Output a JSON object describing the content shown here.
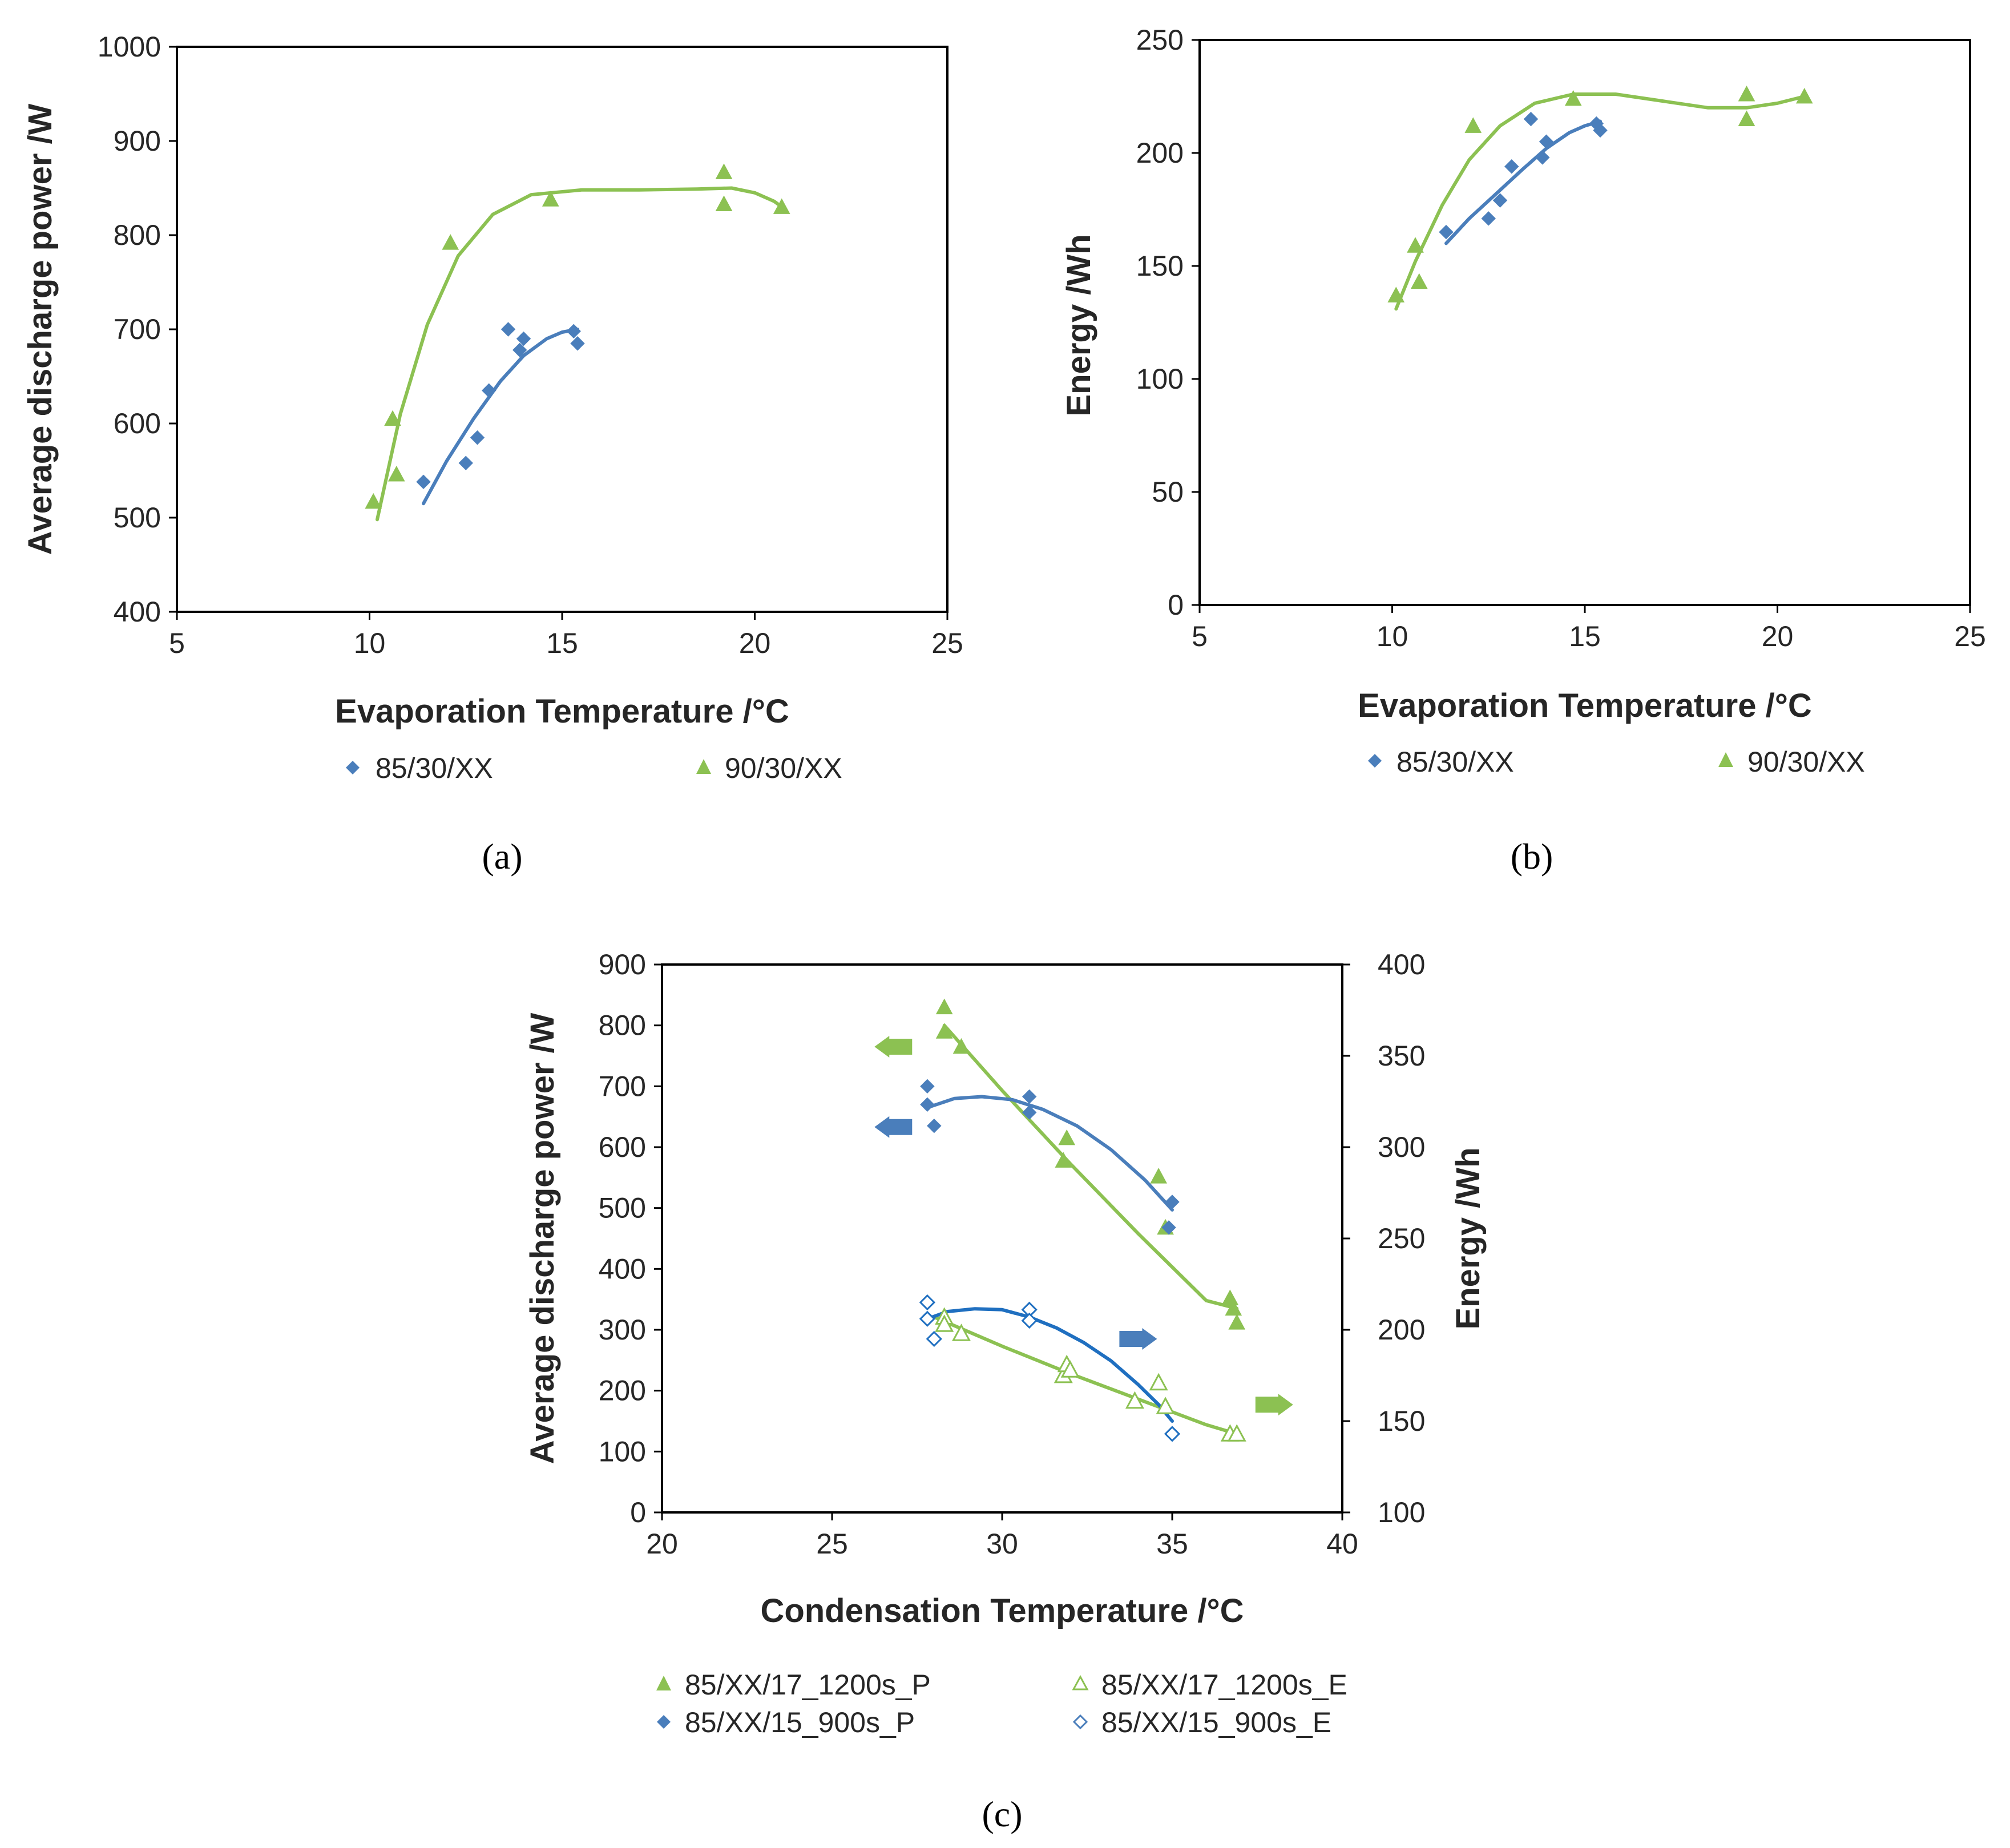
{
  "colors": {
    "blue": "#4a7ebb",
    "green": "#8cc152",
    "green_fill": "#92c94e",
    "blue_line": "#1f6fc0",
    "axis": "#000000"
  },
  "chart_data": [
    {
      "type": "scatter",
      "caption": "(a)",
      "xlabel": "Evaporation Temperature /°C",
      "ylabel": "Average discharge power /W",
      "xlim": [
        5,
        25
      ],
      "ylim": [
        400,
        1000
      ],
      "xticks": [
        5,
        10,
        15,
        20,
        25
      ],
      "yticks": [
        400,
        500,
        600,
        700,
        800,
        900,
        1000
      ],
      "series": [
        {
          "name": "85/30/XX",
          "marker": "diamond",
          "color": "#4a7ebb",
          "x": [
            11.4,
            12.5,
            12.8,
            13.1,
            13.6,
            13.9,
            14.0,
            15.3,
            15.4
          ],
          "y": [
            538,
            558,
            585,
            635,
            700,
            678,
            690,
            698,
            685
          ],
          "trend": [
            [
              11.4,
              515
            ],
            [
              12.0,
              560
            ],
            [
              12.7,
              605
            ],
            [
              13.4,
              645
            ],
            [
              14.0,
              672
            ],
            [
              14.6,
              690
            ],
            [
              15.0,
              697
            ],
            [
              15.4,
              700
            ]
          ]
        },
        {
          "name": "90/30/XX",
          "marker": "triangle",
          "color": "#8cc152",
          "x": [
            10.1,
            10.6,
            10.7,
            12.1,
            14.7,
            19.2,
            19.2,
            20.7
          ],
          "y": [
            517,
            605,
            546,
            792,
            838,
            867,
            833,
            830
          ],
          "trend": [
            [
              10.2,
              498
            ],
            [
              10.8,
              610
            ],
            [
              11.5,
              705
            ],
            [
              12.3,
              778
            ],
            [
              13.2,
              822
            ],
            [
              14.2,
              843
            ],
            [
              15.5,
              848
            ],
            [
              17.0,
              848
            ],
            [
              18.5,
              849
            ],
            [
              19.4,
              850
            ],
            [
              20.0,
              845
            ],
            [
              20.5,
              836
            ],
            [
              20.7,
              830
            ]
          ]
        }
      ]
    },
    {
      "type": "scatter",
      "caption": "(b)",
      "xlabel": "Evaporation Temperature /°C",
      "ylabel": "Energy /Wh",
      "xlim": [
        5,
        25
      ],
      "ylim": [
        0,
        250
      ],
      "xticks": [
        5,
        10,
        15,
        20,
        25
      ],
      "yticks": [
        0,
        50,
        100,
        150,
        200,
        250
      ],
      "series": [
        {
          "name": "85/30/XX",
          "marker": "diamond",
          "color": "#4a7ebb",
          "x": [
            11.4,
            12.5,
            12.8,
            13.1,
            13.6,
            13.9,
            14.0,
            15.3,
            15.4
          ],
          "y": [
            165,
            171,
            179,
            194,
            215,
            198,
            205,
            213,
            210
          ],
          "trend": [
            [
              11.4,
              160
            ],
            [
              12.0,
              171
            ],
            [
              12.7,
              182
            ],
            [
              13.4,
              193
            ],
            [
              14.0,
              202
            ],
            [
              14.6,
              209
            ],
            [
              15.0,
              212
            ],
            [
              15.4,
              214
            ]
          ]
        },
        {
          "name": "90/30/XX",
          "marker": "triangle",
          "color": "#8cc152",
          "x": [
            10.1,
            10.6,
            10.7,
            12.1,
            14.7,
            19.2,
            19.2,
            20.7
          ],
          "y": [
            137,
            159,
            143,
            212,
            224,
            226,
            215,
            225
          ],
          "trend": [
            [
              10.1,
              131
            ],
            [
              10.6,
              152
            ],
            [
              11.3,
              177
            ],
            [
              12.0,
              197
            ],
            [
              12.8,
              212
            ],
            [
              13.7,
              222
            ],
            [
              14.7,
              226
            ],
            [
              15.8,
              226
            ],
            [
              17.0,
              223
            ],
            [
              18.2,
              220
            ],
            [
              19.2,
              220
            ],
            [
              20.0,
              222
            ],
            [
              20.7,
              225
            ]
          ]
        }
      ]
    },
    {
      "type": "scatter",
      "caption": "(c)",
      "xlabel": "Condensation Temperature /°C",
      "ylabel": "Average discharge power /W",
      "y2label": "Energy /Wh",
      "xlim": [
        20,
        40
      ],
      "ylim": [
        0,
        900
      ],
      "y2lim": [
        100,
        400
      ],
      "xticks": [
        20,
        25,
        30,
        35,
        40
      ],
      "yticks": [
        0,
        100,
        200,
        300,
        400,
        500,
        600,
        700,
        800,
        900
      ],
      "y2ticks": [
        100,
        150,
        200,
        250,
        300,
        350,
        400
      ],
      "series": [
        {
          "name": "85/XX/17_1200s_P",
          "marker": "triangle",
          "filled": true,
          "axis": "left",
          "color": "#8cc152",
          "x": [
            28.3,
            28.3,
            28.8,
            31.8,
            31.9,
            34.6,
            34.8,
            36.7,
            36.8,
            36.9
          ],
          "y": [
            830,
            790,
            765,
            578,
            615,
            552,
            468,
            352,
            335,
            312
          ],
          "trend": [
            [
              28.3,
              800
            ],
            [
              30.0,
              693
            ],
            [
              32.0,
              573
            ],
            [
              34.0,
              458
            ],
            [
              36.0,
              348
            ],
            [
              36.9,
              335
            ]
          ]
        },
        {
          "name": "85/XX/17_1200s_E",
          "marker": "triangle",
          "filled": false,
          "axis": "right",
          "color": "#8cc152",
          "x": [
            28.3,
            28.3,
            28.8,
            31.8,
            31.9,
            32.0,
            33.9,
            34.6,
            34.8,
            36.7,
            36.9
          ],
          "y": [
            207,
            203,
            198,
            175,
            181,
            178,
            161,
            171,
            158,
            143,
            143
          ],
          "trend": [
            [
              28.0,
              207
            ],
            [
              30.0,
              191
            ],
            [
              32.0,
              176
            ],
            [
              34.0,
              162
            ],
            [
              36.0,
              148
            ],
            [
              36.9,
              143
            ]
          ]
        },
        {
          "name": "85/XX/15_900s_P",
          "marker": "diamond",
          "filled": true,
          "axis": "left",
          "color": "#4a7ebb",
          "x": [
            27.8,
            27.8,
            28.0,
            30.8,
            30.8,
            34.9,
            35.0
          ],
          "y": [
            700,
            670,
            635,
            683,
            657,
            468,
            510
          ],
          "trend": [
            [
              27.8,
              665
            ],
            [
              28.6,
              680
            ],
            [
              29.4,
              683
            ],
            [
              30.3,
              678
            ],
            [
              31.2,
              662
            ],
            [
              32.2,
              635
            ],
            [
              33.2,
              596
            ],
            [
              34.2,
              546
            ],
            [
              35.0,
              497
            ]
          ]
        },
        {
          "name": "85/XX/15_900s_E",
          "marker": "diamond",
          "filled": false,
          "axis": "right",
          "color": "#1f6fc0",
          "x": [
            27.8,
            27.8,
            28.0,
            30.8,
            30.8,
            35.0
          ],
          "y": [
            215,
            206,
            195,
            211,
            205,
            143
          ],
          "trend": [
            [
              27.8,
              206
            ],
            [
              28.4,
              210
            ],
            [
              29.2,
              211.5
            ],
            [
              30.0,
              211
            ],
            [
              30.8,
              207
            ],
            [
              31.6,
              201
            ],
            [
              32.4,
              193
            ],
            [
              33.2,
              183
            ],
            [
              34.0,
              170
            ],
            [
              34.6,
              159
            ],
            [
              35.0,
              150
            ]
          ]
        }
      ],
      "arrows": [
        {
          "series": "85/XX/17_1200s_P",
          "direction": "left",
          "color": "#8cc152",
          "x": 26.8,
          "y": 765,
          "axis": "left"
        },
        {
          "series": "85/XX/15_900s_P",
          "direction": "left",
          "color": "#4a7ebb",
          "x": 26.8,
          "y": 633,
          "axis": "left"
        },
        {
          "series": "85/XX/15_900s_E",
          "direction": "right",
          "color": "#4a7ebb",
          "x": 34.0,
          "y": 195,
          "axis": "right"
        },
        {
          "series": "85/XX/17_1200s_E",
          "direction": "right",
          "color": "#8cc152",
          "x": 38.0,
          "y": 159,
          "axis": "right"
        }
      ]
    }
  ]
}
